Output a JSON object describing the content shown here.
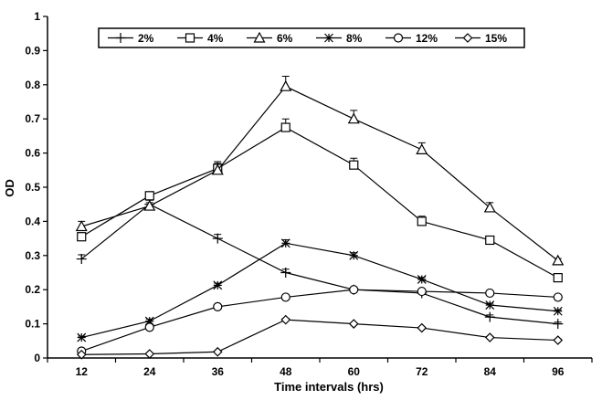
{
  "chart_data": {
    "type": "line",
    "title": "",
    "xlabel": "Time intervals (hrs)",
    "ylabel": "OD",
    "x": [
      12,
      24,
      36,
      48,
      60,
      72,
      84,
      96
    ],
    "x_tick_labels": [
      "12",
      "24",
      "36",
      "48",
      "60",
      "72",
      "84",
      "96"
    ],
    "ylim": [
      0,
      1
    ],
    "y_tick_labels": [
      "0",
      "0.1",
      "0.2",
      "0.3",
      "0.4",
      "0.5",
      "0.6",
      "0.7",
      "0.8",
      "0.9",
      "1"
    ],
    "grid": false,
    "legend": "top",
    "error_bars": true,
    "series": [
      {
        "name": "2%",
        "marker": "plus",
        "values": [
          0.29,
          0.45,
          0.35,
          0.25,
          0.2,
          0.19,
          0.12,
          0.1
        ],
        "errors": [
          0.012,
          0.012,
          0.012,
          0.01,
          0.006,
          0.006,
          0.006,
          0.005
        ]
      },
      {
        "name": "4%",
        "marker": "square",
        "values": [
          0.355,
          0.475,
          0.555,
          0.675,
          0.565,
          0.4,
          0.345,
          0.235
        ],
        "errors": [
          0.012,
          0.012,
          0.02,
          0.025,
          0.02,
          0.015,
          0.008,
          0.006
        ]
      },
      {
        "name": "6%",
        "marker": "triangle",
        "values": [
          0.385,
          0.445,
          0.55,
          0.795,
          0.7,
          0.61,
          0.44,
          0.285
        ],
        "errors": [
          0.015,
          0.01,
          0.02,
          0.03,
          0.025,
          0.02,
          0.015,
          0.006
        ]
      },
      {
        "name": "8%",
        "marker": "star",
        "values": [
          0.06,
          0.108,
          0.213,
          0.336,
          0.3,
          0.23,
          0.155,
          0.137
        ],
        "errors": [
          0.004,
          0.006,
          0.006,
          0.01,
          0.008,
          0.006,
          0.005,
          0.004
        ]
      },
      {
        "name": "12%",
        "marker": "circle",
        "values": [
          0.02,
          0.09,
          0.15,
          0.178,
          0.2,
          0.195,
          0.19,
          0.178
        ],
        "errors": [
          0.003,
          0.004,
          0.006,
          0.006,
          0.006,
          0.005,
          0.005,
          0.004
        ]
      },
      {
        "name": "15%",
        "marker": "diamond",
        "values": [
          0.01,
          0.012,
          0.018,
          0.112,
          0.1,
          0.088,
          0.06,
          0.052
        ],
        "errors": [
          0.002,
          0.002,
          0.002,
          0.004,
          0.003,
          0.003,
          0.003,
          0.003
        ]
      }
    ]
  }
}
